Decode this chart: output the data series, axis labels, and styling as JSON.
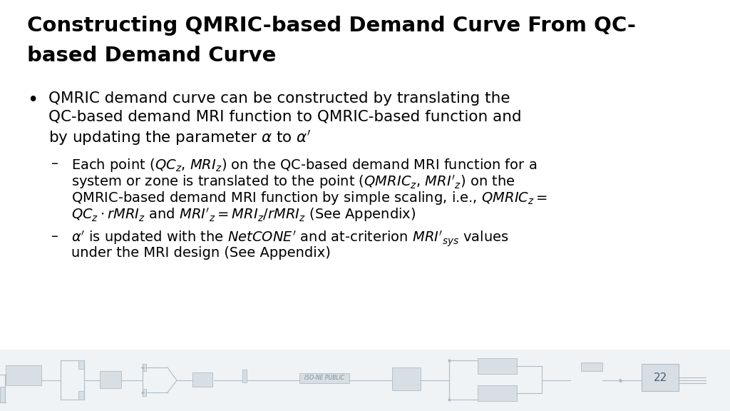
{
  "title_line1": "Constructing QMRIC-based Demand Curve From QC-",
  "title_line2": "based Demand Curve",
  "title_fontsize": 21,
  "title_color": "#000000",
  "bullet_fontsize": 15.5,
  "sub_fontsize": 14,
  "footer_text": "ISO-NE PUBLIC",
  "page_number": "22",
  "background_color": "#ffffff",
  "text_color": "#000000",
  "footer_bg": "#f0f3f5",
  "circuit_fill": "#d8dfe4",
  "circuit_edge": "#b0bcc5",
  "footer_text_color": "#7a8fa0",
  "page_num_color": "#4a5a6a"
}
